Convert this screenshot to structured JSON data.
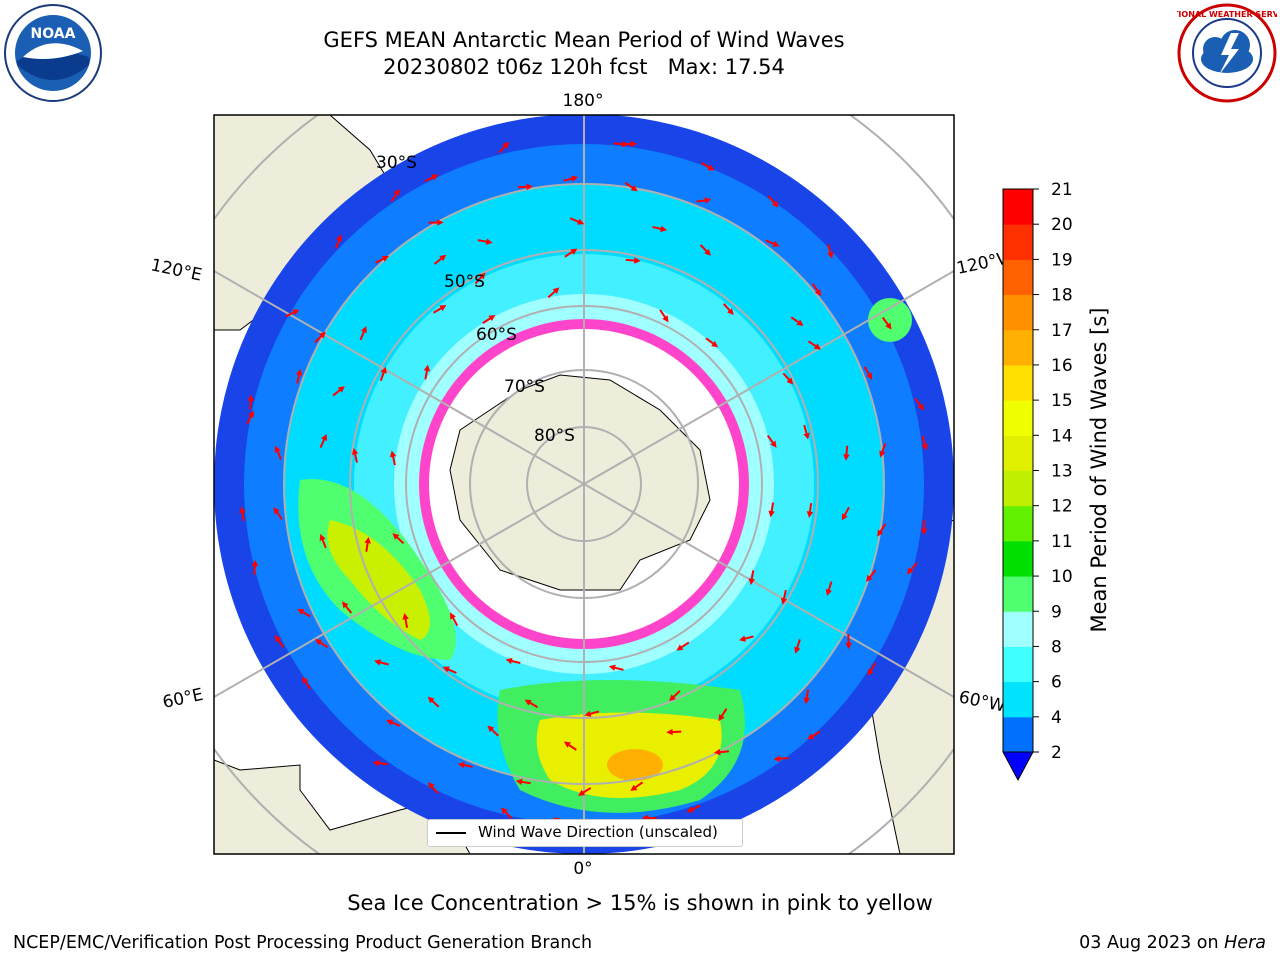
{
  "header": {
    "title_line1": "GEFS MEAN Antarctic Mean Period of Wind Waves",
    "title_line2": "20230802 t06z 120h fcst   Max: 17.54"
  },
  "logos": {
    "noaa": {
      "icon": "noaa-logo",
      "text": "NOAA"
    },
    "nws": {
      "icon": "nws-logo",
      "text": "NATIONAL WEATHER SERVICE"
    }
  },
  "map": {
    "projection": "south-polar-stereographic",
    "longitude_labels": {
      "top": "180°",
      "bottom": "0°",
      "upper_left": "120°E",
      "upper_right": "120°W",
      "lower_left": "60°E",
      "lower_right": "60°W"
    },
    "latitude_labels": [
      "30°S",
      "50°S",
      "60°S",
      "70°S",
      "80°S"
    ],
    "colors": {
      "land": "#eeecda",
      "ocean_background": "#ffffff",
      "gridlines": "#b0b0b0",
      "arrows": "#ff0000",
      "sea_ice": "#ff44cc"
    },
    "legend": {
      "text": "Wind Wave Direction (unscaled)"
    }
  },
  "colorbar": {
    "label": "Mean Period of Wind Waves [s]",
    "ticks": [
      "2",
      "4",
      "6",
      "8",
      "9",
      "10",
      "11",
      "12",
      "13",
      "14",
      "15",
      "16",
      "17",
      "18",
      "19",
      "20",
      "21"
    ],
    "extend_color": "#0000ff",
    "colors": [
      "#0070ff",
      "#00e4ff",
      "#40ffff",
      "#a0ffff",
      "#50ff70",
      "#00e000",
      "#60f000",
      "#c0f000",
      "#e0f000",
      "#f0ff00",
      "#ffe000",
      "#ffb000",
      "#ff9000",
      "#ff6000",
      "#ff3000",
      "#ff0000"
    ]
  },
  "caption": "Sea Ice Concentration > 15% is shown in pink to yellow",
  "footer": {
    "left": "NCEP/EMC/Verification Post Processing Product Generation Branch",
    "right_prefix": "03 Aug 2023 on ",
    "right_host": "Hera"
  }
}
